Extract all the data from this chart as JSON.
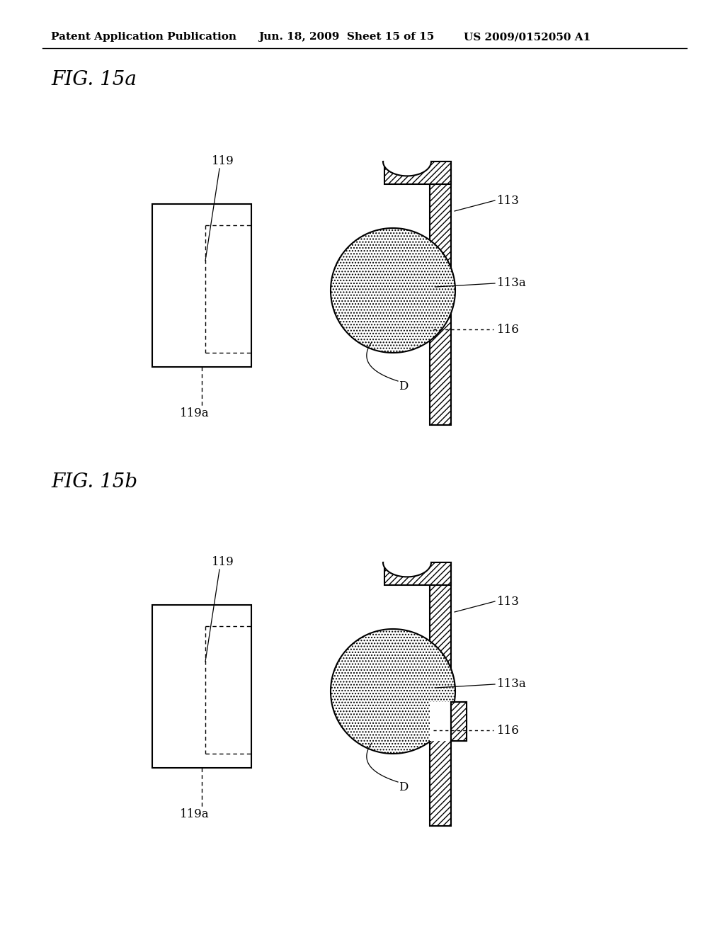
{
  "bg_color": "#ffffff",
  "header_text": "Patent Application Publication",
  "header_date": "Jun. 18, 2009  Sheet 15 of 15",
  "header_patent": "US 2009/0152050 A1",
  "fig_a_title": "FIG. 15a",
  "fig_b_title": "FIG. 15b",
  "line_color": "#000000",
  "hatch_color": "#000000",
  "lw": 1.5,
  "header_fontsize": 11,
  "title_fontsize": 20,
  "label_fontsize": 12
}
